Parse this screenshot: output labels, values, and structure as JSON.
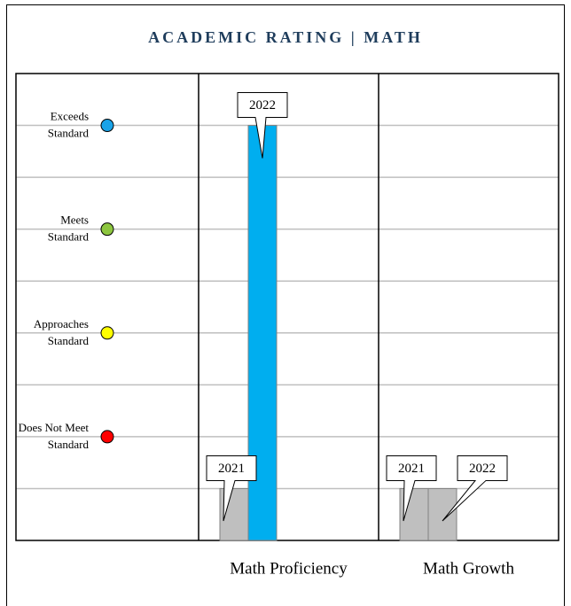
{
  "chart_data": {
    "type": "bar",
    "title": "ACADEMIC RATING | MATH",
    "categories": [
      "Math Proficiency",
      "Math Growth"
    ],
    "series": [
      {
        "name": "2021",
        "colors": [
          "#bfbfbf",
          "#bfbfbf"
        ],
        "values": [
          1,
          1
        ]
      },
      {
        "name": "2022",
        "colors": [
          "#00aeef",
          "#bfbfbf"
        ],
        "values": [
          8,
          1
        ]
      }
    ],
    "ylim": [
      0,
      9
    ],
    "yticks": [
      {
        "value": 1,
        "label": null
      },
      {
        "value": 2,
        "label": "Does Not Meet Standard",
        "color": "#ff0000"
      },
      {
        "value": 3,
        "label": null
      },
      {
        "value": 4,
        "label": "Approaches Standard",
        "color": "#ffff00"
      },
      {
        "value": 5,
        "label": null
      },
      {
        "value": 6,
        "label": "Meets Standard",
        "color": "#8dc63f"
      },
      {
        "value": 7,
        "label": null
      },
      {
        "value": 8,
        "label": "Exceeds Standard",
        "color": "#1aa3e8"
      }
    ],
    "grid": true
  }
}
